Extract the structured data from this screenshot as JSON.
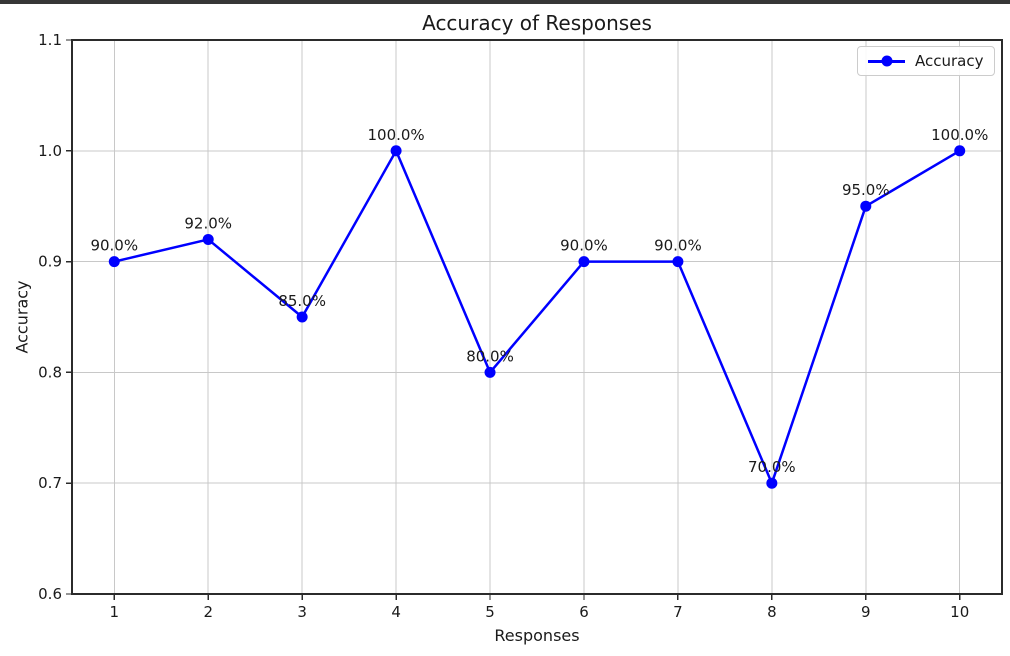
{
  "colors": {
    "line": "#0000ff",
    "grid": "#c8c8c8",
    "axis": "#2b2b2b",
    "text": "#1a1a1a",
    "top_bar": "#363636",
    "legend_border": "#cccccc",
    "background": "#ffffff"
  },
  "chart_data": {
    "type": "line",
    "title": "Accuracy of Responses",
    "xlabel": "Responses",
    "ylabel": "Accuracy",
    "x": [
      1,
      2,
      3,
      4,
      5,
      6,
      7,
      8,
      9,
      10
    ],
    "series": [
      {
        "name": "Accuracy",
        "color": "#0000ff",
        "values": [
          0.9,
          0.92,
          0.85,
          1.0,
          0.8,
          0.9,
          0.9,
          0.7,
          0.95,
          1.0
        ]
      }
    ],
    "point_labels": [
      "90.0%",
      "92.0%",
      "85.0%",
      "100.0%",
      "80.0%",
      "90.0%",
      "90.0%",
      "70.0%",
      "95.0%",
      "100.0%"
    ],
    "xlim": [
      0.55,
      10.45
    ],
    "ylim": [
      0.6,
      1.1
    ],
    "xticks": [
      1,
      2,
      3,
      4,
      5,
      6,
      7,
      8,
      9,
      10
    ],
    "xtick_labels": [
      "1",
      "2",
      "3",
      "4",
      "5",
      "6",
      "7",
      "8",
      "9",
      "10"
    ],
    "yticks": [
      0.6,
      0.7,
      0.8,
      0.9,
      1.0,
      1.1
    ],
    "ytick_labels": [
      "0.6",
      "0.7",
      "0.8",
      "0.9",
      "1.0",
      "1.1"
    ],
    "grid": true,
    "legend": {
      "position": "upper right",
      "entries": [
        "Accuracy"
      ]
    }
  }
}
